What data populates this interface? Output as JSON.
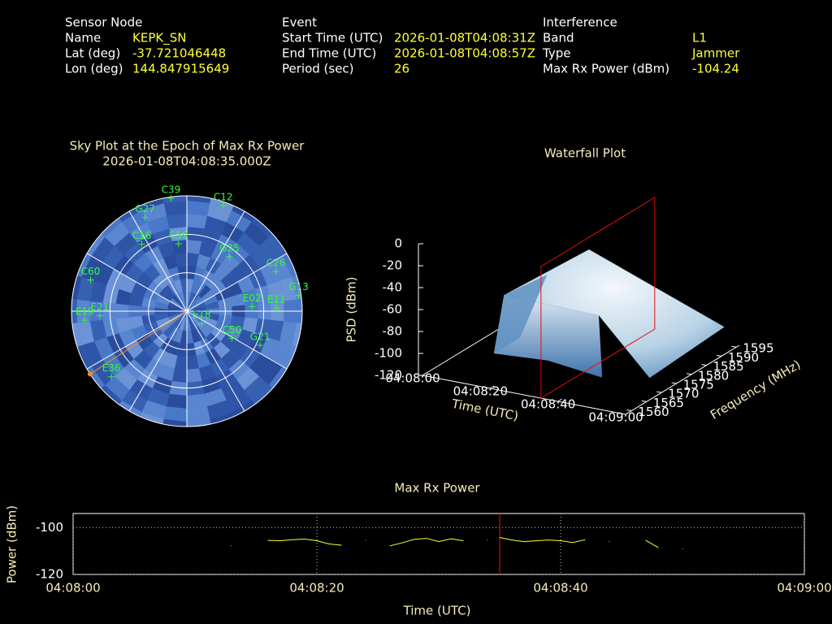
{
  "sensor": {
    "heading": "Sensor Node",
    "rows": [
      [
        "Name",
        "KEPK_SN"
      ],
      [
        "Lat (deg)",
        "-37.721046448"
      ],
      [
        "Lon (deg)",
        "144.847915649"
      ]
    ]
  },
  "event": {
    "heading": "Event",
    "rows": [
      [
        "Start Time (UTC)",
        "2026-01-08T04:08:31Z"
      ],
      [
        "End Time (UTC)",
        "2026-01-08T04:08:57Z"
      ],
      [
        "Period (sec)",
        "26"
      ]
    ]
  },
  "interference": {
    "heading": "Interference",
    "rows": [
      [
        "Band",
        "L1"
      ],
      [
        "Type",
        "Jammer"
      ],
      [
        "Max Rx Power (dBm)",
        "-104.24"
      ]
    ]
  },
  "chart_data": [
    {
      "type": "sky",
      "title": "Sky Plot at the Epoch of Max Rx Power",
      "subtitle": "2026-01-08T04:08:35.000Z",
      "color": "#33ff33",
      "jammer": {
        "az": 237,
        "el": 0,
        "color": "#ff8c1a"
      },
      "satellites": [
        {
          "name": "C39",
          "az": 352,
          "el": 1
        },
        {
          "name": "C12",
          "az": 19,
          "el": 3
        },
        {
          "name": "G27",
          "az": 336,
          "el": 10
        },
        {
          "name": "C16",
          "az": 326,
          "el": 27
        },
        {
          "name": "C59",
          "az": 353,
          "el": 37
        },
        {
          "name": "G25",
          "az": 38,
          "el": 36
        },
        {
          "name": "C26",
          "az": 66,
          "el": 14
        },
        {
          "name": "G13",
          "az": 82,
          "el": 2
        },
        {
          "name": "E02",
          "az": 86,
          "el": 39
        },
        {
          "name": "E11",
          "az": 88,
          "el": 20
        },
        {
          "name": "C50",
          "az": 121,
          "el": 49
        },
        {
          "name": "G21",
          "az": 115,
          "el": 27
        },
        {
          "name": "E36",
          "az": 229,
          "el": 12
        },
        {
          "name": "E21",
          "az": 267,
          "el": 22
        },
        {
          "name": "E19",
          "az": 265,
          "el": 10
        },
        {
          "name": "C60",
          "az": 288,
          "el": 11
        },
        {
          "name": "E18",
          "az": 130,
          "el": 75
        }
      ]
    },
    {
      "type": "waterfall",
      "title": "Waterfall Plot",
      "zlabel": "PSD (dBm)",
      "xlabel": "Time (UTC)",
      "ylabel": "Frequency (MHz)",
      "xlim": [
        0,
        60
      ],
      "xticks": [
        {
          "value": 0,
          "label": "04:08:00"
        },
        {
          "value": 20,
          "label": "04:08:20"
        },
        {
          "value": 40,
          "label": "04:08:40"
        },
        {
          "value": 60,
          "label": "04:09:00"
        }
      ],
      "ylim": [
        1558,
        1596
      ],
      "yticks": [
        1560,
        1565,
        1570,
        1575,
        1580,
        1585,
        1590,
        1595
      ],
      "zlim": [
        -120,
        0
      ],
      "zticks": [
        0,
        -20,
        -40,
        -60,
        -80,
        -100,
        -120
      ]
    },
    {
      "type": "line",
      "title": "Max Rx Power",
      "xlabel": "Time (UTC)",
      "ylabel": "Power (dBm)",
      "color": "#ffff33",
      "xlim": [
        0,
        60
      ],
      "xticks": [
        {
          "value": 0,
          "label": "04:08:00"
        },
        {
          "value": 20,
          "label": "04:08:20"
        },
        {
          "value": 40,
          "label": "04:08:40"
        },
        {
          "value": 60,
          "label": "04:09:00"
        }
      ],
      "ylim": [
        -120,
        -94
      ],
      "yticks": [
        -100,
        -120
      ],
      "grid": true,
      "marker": 35,
      "x": [
        13,
        14,
        16,
        17,
        18,
        19,
        20,
        21,
        22,
        23,
        24,
        25,
        26,
        27,
        28,
        29,
        30,
        31,
        32,
        33,
        34,
        34.5,
        35,
        36,
        37,
        38,
        39,
        40,
        41,
        42,
        43,
        44,
        45,
        47,
        48,
        49,
        50
      ],
      "values": [
        -107.8,
        null,
        -105.5,
        -105.6,
        -105.2,
        -104.9,
        -105.6,
        -107,
        -107.5,
        null,
        -105.5,
        null,
        -107.8,
        -106.5,
        -105,
        -104.6,
        -106,
        -104.8,
        -105.6,
        null,
        -105.2,
        null,
        -104.24,
        -105.3,
        -106,
        -105.6,
        -105.3,
        -105.6,
        -106.4,
        -105.2,
        null,
        -106,
        null,
        -105.5,
        -108.5,
        null,
        -109
      ]
    }
  ]
}
